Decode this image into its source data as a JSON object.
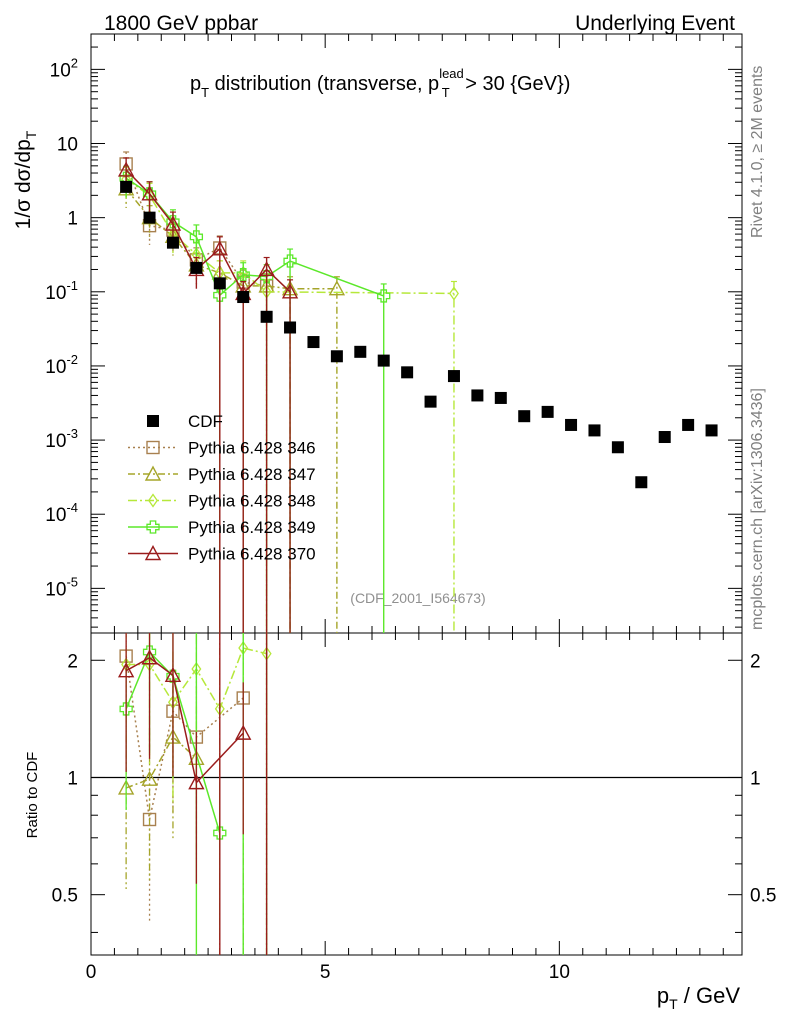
{
  "header": {
    "left": "1800 GeV ppbar",
    "right": "Underlying Event"
  },
  "title": {
    "main": "p",
    "sub": "T",
    "rest": " distribution (transverse, p",
    "sup2": "lead",
    "sub2": "T",
    "tail": " > 30 {GeV})"
  },
  "side_labels": {
    "rivet": "Rivet 4.1.0, ≥ 2M events",
    "mcplots": "mcplots.cern.ch [arXiv:1306.3436]"
  },
  "watermark": "(CDF_2001_I564673)",
  "axes": {
    "ylabel_main": "1/σ  dσ/dp",
    "ylabel_sub": "T",
    "ratio_ylabel": "Ratio to CDF",
    "xlabel_main": "p",
    "xlabel_sub": "T",
    "xlabel_tail": " / GeV",
    "x_ticks": [
      "0",
      "5",
      "10"
    ],
    "ratio_ticks": [
      "0.5",
      "1",
      "2"
    ]
  },
  "legend": [
    {
      "label": "CDF"
    },
    {
      "label": "Pythia 6.428 346"
    },
    {
      "label": "Pythia 6.428 347"
    },
    {
      "label": "Pythia 6.428 348"
    },
    {
      "label": "Pythia 6.428 349"
    },
    {
      "label": "Pythia 6.428 370"
    }
  ],
  "chart_data": {
    "type": "scatter",
    "title": "pT distribution (transverse, pT lead > 30 {GeV})",
    "xlabel": "pT / GeV",
    "ylabel": "1/sigma dsigma/dpT",
    "xlim": [
      0,
      13.9
    ],
    "ylim": [
      2.5e-06,
      300
    ],
    "ylog": true,
    "ratio_ylim": [
      0.35,
      2.35
    ],
    "ratio_log": true,
    "reference": {
      "name": "CDF",
      "color": "#000000",
      "x": [
        0.75,
        1.25,
        1.75,
        2.25,
        2.75,
        3.25,
        3.75,
        4.25,
        4.75,
        5.25,
        5.75,
        6.25,
        6.75,
        7.25,
        7.75,
        8.25,
        8.75,
        9.25,
        9.75,
        10.25,
        10.75,
        11.25,
        11.75,
        12.25,
        12.75,
        13.25
      ],
      "y": [
        2.6,
        1.0,
        0.46,
        0.21,
        0.13,
        0.085,
        0.046,
        0.033,
        0.021,
        0.0135,
        0.0155,
        0.0118,
        0.0082,
        0.0033,
        0.0073,
        0.004,
        0.0037,
        0.0021,
        0.0024,
        0.0016,
        0.00135,
        0.0008,
        0.00027,
        0.0011,
        0.0016,
        0.00135
      ]
    },
    "series": [
      {
        "name": "Pythia 6.428 346",
        "color": "#a8804f",
        "marker": "square",
        "dash": "2,3",
        "x": [
          0.75,
          1.25,
          1.75,
          2.25,
          2.75,
          3.25,
          3.75
        ],
        "y": [
          5.3,
          0.78,
          0.68,
          0.27,
          0.39,
          0.135,
          0.12
        ]
      },
      {
        "name": "Pythia 6.428 347",
        "color": "#a5a52a",
        "marker": "triangle",
        "dash": "7,3,2,3",
        "x": [
          0.75,
          1.25,
          1.75,
          2.25,
          2.75,
          3.25,
          3.75,
          4.25,
          5.25
        ],
        "y": [
          2.45,
          1.0,
          0.56,
          0.23,
          0.18,
          0.12,
          0.12,
          0.11,
          0.11
        ]
      },
      {
        "name": "Pythia 6.428 348",
        "color": "#b6e83a",
        "marker": "diamond",
        "dash": "9,3,2,3",
        "x": [
          0.75,
          1.25,
          1.75,
          2.25,
          2.75,
          3.25,
          3.75,
          7.75
        ],
        "y": [
          3.3,
          2.0,
          0.6,
          0.32,
          0.18,
          0.18,
          0.1,
          0.095
        ]
      },
      {
        "name": "Pythia 6.428 349",
        "color": "#5ce82a",
        "marker": "cross",
        "dash": "",
        "x": [
          0.75,
          1.25,
          1.75,
          2.25,
          2.75,
          3.25,
          3.75,
          4.25,
          6.25
        ],
        "y": [
          3.4,
          2.1,
          0.88,
          0.55,
          0.09,
          0.17,
          0.16,
          0.26,
          0.088
        ]
      },
      {
        "name": "Pythia 6.428 370",
        "color": "#9a1c1c",
        "marker": "triangle",
        "dash": "",
        "x": [
          0.75,
          1.25,
          1.75,
          2.25,
          2.75,
          3.25,
          3.75,
          4.25
        ],
        "y": [
          4.4,
          2.1,
          0.82,
          0.2,
          0.38,
          0.095,
          0.2,
          0.1
        ]
      }
    ],
    "ratios": [
      {
        "name": "Pythia 6.428 346",
        "x": [
          0.75,
          1.25,
          1.75,
          2.25,
          3.25
        ],
        "y": [
          2.05,
          0.78,
          1.48,
          1.27,
          1.6
        ]
      },
      {
        "name": "Pythia 6.428 347",
        "x": [
          0.75,
          1.25,
          1.75,
          2.25
        ],
        "y": [
          0.94,
          0.99,
          1.27,
          1.12
        ]
      },
      {
        "name": "Pythia 6.428 348",
        "x": [
          0.75,
          1.25,
          1.75,
          2.25,
          2.75,
          3.25,
          3.75
        ],
        "y": [
          1.95,
          1.95,
          1.56,
          1.9,
          1.5,
          2.15,
          2.08
        ]
      },
      {
        "name": "Pythia 6.428 349",
        "x": [
          0.75,
          1.25,
          1.75,
          2.75
        ],
        "y": [
          1.5,
          2.1,
          1.82,
          0.72
        ]
      },
      {
        "name": "Pythia 6.428 370",
        "x": [
          0.75,
          1.25,
          1.75,
          2.25,
          3.25
        ],
        "y": [
          1.88,
          2.03,
          1.83,
          0.97,
          1.3
        ]
      }
    ]
  }
}
